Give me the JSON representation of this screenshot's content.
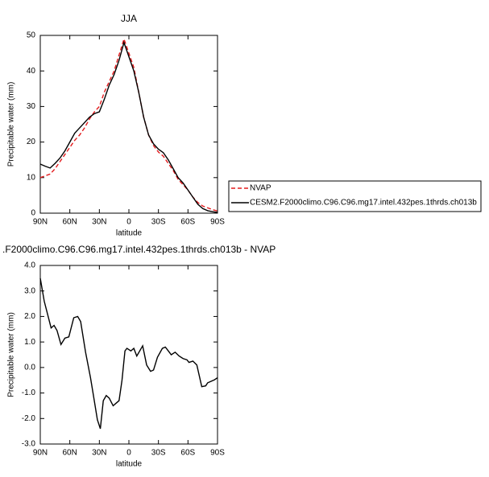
{
  "chart_data": [
    {
      "type": "line",
      "title": "JJA",
      "xlabel": "latitude",
      "ylabel": "Precipitable water (mm)",
      "x": [
        90,
        85,
        80,
        75,
        70,
        65,
        60,
        55,
        50,
        45,
        40,
        35,
        30,
        25,
        20,
        15,
        10,
        5,
        0,
        -5,
        -10,
        -15,
        -20,
        -25,
        -30,
        -35,
        -40,
        -45,
        -50,
        -55,
        -60,
        -65,
        -70,
        -75,
        -80,
        -85,
        -90
      ],
      "series": [
        {
          "name": "NVAP",
          "color": "#e31a1c",
          "dashed": true,
          "values": [
            10,
            10.5,
            11,
            12.5,
            14.5,
            16.5,
            18.5,
            20.5,
            22,
            24,
            26.5,
            28.5,
            30,
            34,
            37,
            40,
            44.5,
            49,
            45,
            41,
            34,
            27,
            22,
            19,
            17.2,
            16,
            14,
            12,
            9.5,
            8,
            6.5,
            4.5,
            3,
            2,
            1.5,
            1,
            0.6
          ]
        },
        {
          "name": "CESM2.F2000climo.C96.C96.mg17.intel.432pes.1thrds.ch013b",
          "color": "#000000",
          "values": [
            13.8,
            13.2,
            12.7,
            14,
            15.5,
            17.5,
            20,
            22.5,
            24,
            25.5,
            27,
            28,
            28.5,
            32,
            36,
            39,
            43,
            48,
            44,
            40,
            34,
            27,
            22,
            19.5,
            18,
            17,
            15,
            12.5,
            10,
            8.5,
            6.5,
            4.5,
            2.5,
            1.3,
            0.7,
            0.4,
            0.2
          ]
        }
      ],
      "xlim": [
        90,
        -90
      ],
      "xticks": [
        {
          "value": 90,
          "label": "90N"
        },
        {
          "value": 60,
          "label": "60N"
        },
        {
          "value": 30,
          "label": "30N"
        },
        0,
        {
          "value": -30,
          "label": "30S"
        },
        {
          "value": -60,
          "label": "60S"
        },
        {
          "value": -90,
          "label": "90S"
        }
      ],
      "ylim": [
        0,
        50
      ],
      "yticks": [
        0,
        10,
        20,
        30,
        40,
        50
      ],
      "legend": "outside-right"
    },
    {
      "type": "line",
      "title": ".F2000climo.C96.C96.mg17.intel.432pes.1thrds.ch013b - NVAP",
      "xlabel": "latitude",
      "ylabel": "Precipitable water (mm)",
      "x": [
        90,
        86,
        82,
        79,
        76,
        73,
        69,
        65,
        61,
        56,
        52,
        49,
        44,
        39,
        36,
        32,
        29,
        26,
        23,
        20,
        16,
        10,
        7,
        4,
        2,
        -2,
        -5,
        -8,
        -14,
        -18,
        -22,
        -25,
        -29,
        -34,
        -37,
        -40,
        -43,
        -47,
        -51,
        -55,
        -59,
        -61,
        -65,
        -69,
        -74,
        -78,
        -80,
        -87,
        -90
      ],
      "color": "#000000",
      "values": [
        3.5,
        2.6,
        2.0,
        1.55,
        1.65,
        1.45,
        0.9,
        1.15,
        1.2,
        1.95,
        2.0,
        1.8,
        0.6,
        -0.4,
        -1.1,
        -2.05,
        -2.4,
        -1.3,
        -1.1,
        -1.2,
        -1.5,
        -1.3,
        -0.5,
        0.65,
        0.75,
        0.65,
        0.75,
        0.45,
        0.85,
        0.1,
        -0.15,
        -0.1,
        0.4,
        0.75,
        0.8,
        0.65,
        0.5,
        0.6,
        0.45,
        0.35,
        0.3,
        0.2,
        0.25,
        0.1,
        -0.75,
        -0.72,
        -0.6,
        -0.48,
        -0.4
      ],
      "xlim": [
        90,
        -90
      ],
      "xticks": [
        {
          "value": 90,
          "label": "90N"
        },
        {
          "value": 60,
          "label": "60N"
        },
        {
          "value": 30,
          "label": "30N"
        },
        0,
        {
          "value": -30,
          "label": "30S"
        },
        {
          "value": -60,
          "label": "60S"
        },
        {
          "value": -90,
          "label": "90S"
        }
      ],
      "ylim": [
        -3,
        4
      ],
      "yticks": [
        {
          "value": -3,
          "label": "-3.0"
        },
        {
          "value": -2,
          "label": "-2.0"
        },
        {
          "value": -1,
          "label": "-1.0"
        },
        {
          "value": 0,
          "label": "0.0"
        },
        {
          "value": 1,
          "label": "1.0"
        },
        {
          "value": 2,
          "label": "2.0"
        },
        {
          "value": 3,
          "label": "3.0"
        },
        {
          "value": 4,
          "label": "4.0"
        }
      ]
    }
  ]
}
